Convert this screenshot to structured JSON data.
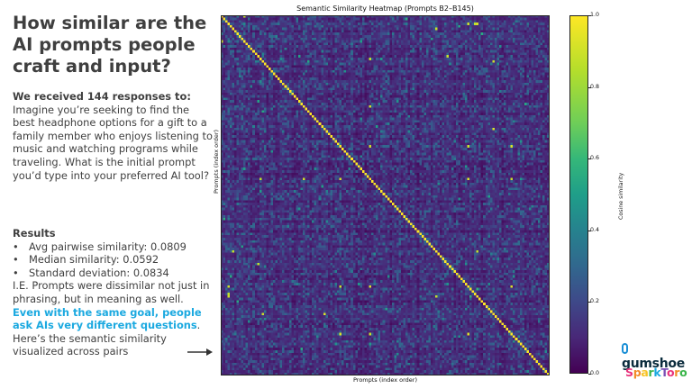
{
  "slide": {
    "title": "How similar are the AI prompts people craft and input?",
    "intro_lead": "We received 144 responses to:",
    "intro_text": "Imagine you’re seeking to find the best headphone options for a gift to a family member who enjoys listening to music and watching programs while traveling. What is the initial prompt you’d type into your preferred AI tool?",
    "results_head": "Results",
    "results_items": [
      "Avg pairwise similarity: 0.0809",
      "Median similarity: 0.0592",
      "Standard deviation: 0.0834"
    ],
    "conclusion_pre": "I.E. Prompts were dissimilar not just in phrasing, but in meaning as well. ",
    "conclusion_highlight": "Even with the same goal, people ask AIs very different questions",
    "conclusion_post": ". Here’s the semantic similarity visualized across pairs",
    "logos": {
      "gumshoe": "gumshoe",
      "sparktoro": "SparkToro"
    }
  },
  "chart_data": {
    "type": "heatmap",
    "title": "Semantic Similarity Heatmap (Prompts B2–B145)",
    "xlabel": "Prompts (index order)",
    "ylabel": "Prompts (index order)",
    "n": 144,
    "colorbar_label": "Cosine similarity",
    "colorbar_range": [
      0.0,
      1.0
    ],
    "colorbar_ticks": [
      "0.0",
      "0.2",
      "0.4",
      "0.6",
      "0.8",
      "1.0"
    ],
    "colormap": "viridis",
    "diagonal_value": 1.0,
    "summary": {
      "mean": 0.0809,
      "median": 0.0592,
      "std": 0.0834
    },
    "high_similarity_pairs": [
      [
        3,
        108
      ],
      [
        3,
        111
      ],
      [
        3,
        112
      ],
      [
        0,
        10
      ],
      [
        52,
        65
      ],
      [
        52,
        108
      ],
      [
        52,
        127
      ],
      [
        65,
        108
      ],
      [
        65,
        127
      ],
      [
        108,
        127
      ],
      [
        17,
        65
      ],
      [
        36,
        65
      ],
      [
        99,
        16
      ],
      [
        119,
        45
      ],
      [
        119,
        18
      ],
      [
        94,
        5
      ],
      [
        94,
        112
      ]
    ],
    "colors": {
      "low": "#440154",
      "mid": "#21918c",
      "high": "#fde725",
      "hl_text": "#1ba9e0"
    }
  }
}
